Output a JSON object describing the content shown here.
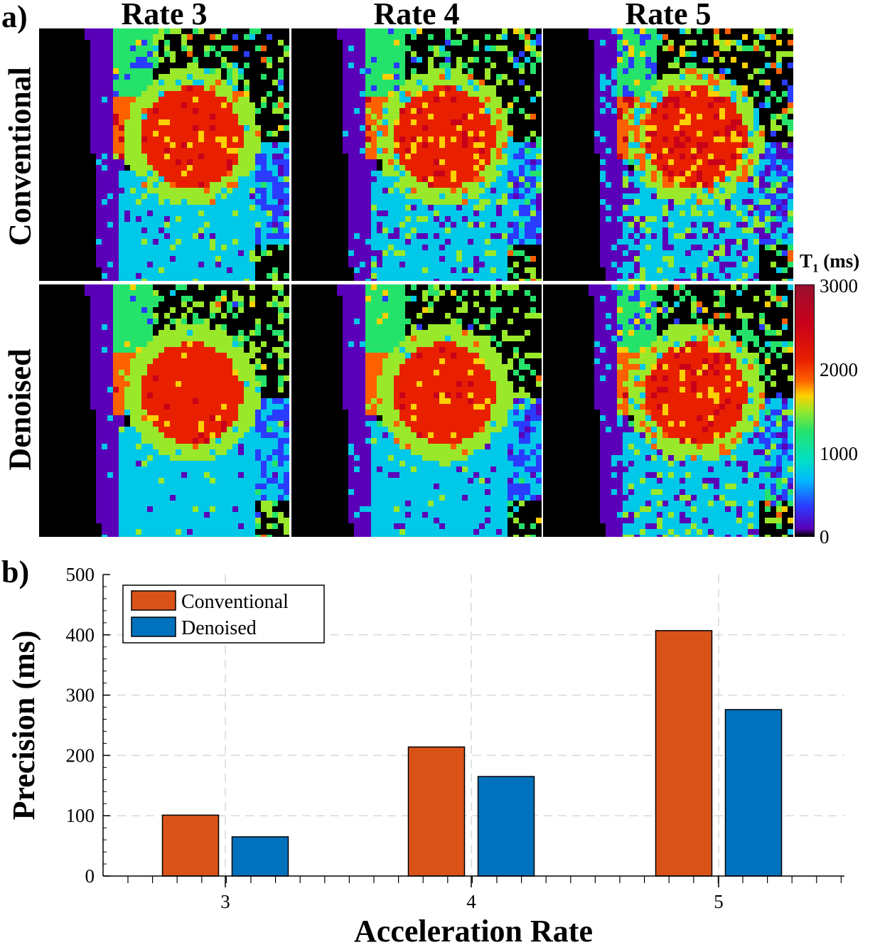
{
  "panel_a": {
    "letter": "a)",
    "columns": [
      "Rate 3",
      "Rate 4",
      "Rate 5"
    ],
    "rows": [
      "Conventional",
      "Denoised"
    ],
    "colorbar": {
      "label_main": "T",
      "label_sub": "1",
      "label_unit": " (ms)",
      "ticks": [
        "3000",
        "2000",
        "1000",
        "0"
      ],
      "range": [
        0,
        3000
      ]
    }
  },
  "panel_b": {
    "letter": "b)"
  },
  "chart_data": {
    "type": "bar",
    "categories": [
      "3",
      "4",
      "5"
    ],
    "series": [
      {
        "name": "Conventional",
        "values": [
          101,
          214,
          407
        ],
        "color": "#D95319"
      },
      {
        "name": "Denoised",
        "values": [
          65,
          165,
          276
        ],
        "color": "#0072BD"
      }
    ],
    "xlabel": "Acceleration Rate",
    "ylabel": "Precision (ms)",
    "ylim": [
      0,
      500
    ],
    "yticks": [
      "0",
      "100",
      "200",
      "300",
      "400",
      "500"
    ],
    "grid": true,
    "legend_position": "top-left"
  }
}
